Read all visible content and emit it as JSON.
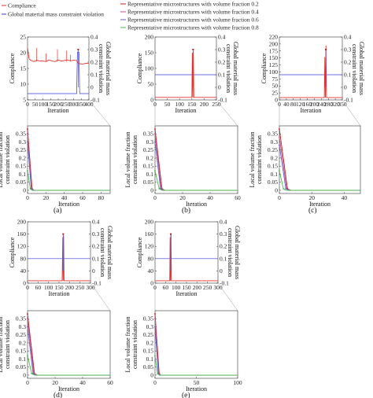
{
  "legend": {
    "compliance": "Compliance",
    "global_violation": "Global material mass constraint violation",
    "vf02": "Representative microstructures with volume fraction 0.2",
    "vf04": "Representative microstructures with volume fraction 0.4",
    "vf06": "Representative microstructures with volume fraction 0.6",
    "vf08": "Representative microstructures with volume fraction 0.8"
  },
  "colors": {
    "compliance": "#e8312a",
    "global": "#3a3ad8",
    "vf02": "#c41e1e",
    "vf04": "#d04a8c",
    "vf06": "#6060c8",
    "vf08": "#44bb44"
  },
  "labels": {
    "compliance": "Compliance",
    "global": "Global material mass constraint violation",
    "iteration": "Iteration",
    "local": "Local volume fraction constraint violation"
  },
  "chart_data": [
    {
      "panel": "(a)",
      "type": "line",
      "main": {
        "x_ticks": [
          "0",
          "50",
          "100",
          "150",
          "200",
          "250",
          "300",
          "350",
          "400"
        ],
        "xlim": [
          0,
          400
        ],
        "y_left_ticks": [
          "5",
          "10",
          "15",
          "20",
          "25"
        ],
        "y_left_lim": [
          2,
          25
        ],
        "y_right_ticks": [
          "-0.1",
          "0",
          "0.1",
          "0.2",
          "0.3",
          "0.4"
        ],
        "y_right_lim": [
          -0.1,
          0.4
        ],
        "compliance": {
          "x": [
            0,
            10,
            20,
            40,
            60,
            80,
            100,
            120,
            140,
            160,
            180,
            200,
            220,
            240,
            260,
            280,
            300,
            320,
            330,
            340,
            360,
            380,
            400
          ],
          "y": [
            21,
            17,
            16.5,
            16,
            16.5,
            16.2,
            16.2,
            16,
            16.6,
            16.2,
            16,
            16.6,
            16.2,
            16.4,
            16.6,
            16.3,
            16.5,
            16.4,
            15.5,
            15.2,
            15.1,
            15.4,
            15.3
          ]
        },
        "compliance_spikes": [
          [
            60,
            21
          ],
          [
            120,
            19
          ],
          [
            195,
            20.5
          ],
          [
            255,
            20
          ],
          [
            280,
            18.5
          ]
        ],
        "global": {
          "x": [
            0,
            20,
            100,
            200,
            300,
            320,
            325,
            335,
            340,
            400
          ],
          "y": [
            -0.05,
            -0.05,
            -0.05,
            -0.05,
            -0.05,
            -0.05,
            0.28,
            0.28,
            -0.05,
            -0.05
          ]
        },
        "local_spike": {
          "x": 330,
          "y": 0.3
        }
      },
      "local": {
        "x_ticks": [
          "0",
          "20",
          "40",
          "60",
          "80"
        ],
        "xlim": [
          0,
          90
        ],
        "y_ticks": [
          "0",
          "0.05",
          "0.1",
          "0.15",
          "0.2",
          "0.25",
          "0.3",
          "0.35"
        ],
        "ylim": [
          -0.02,
          0.4
        ],
        "series": [
          {
            "key": "vf02",
            "x": [
              0,
              5,
              7,
              90
            ],
            "y": [
              0.38,
              0.01,
              0,
              0
            ]
          },
          {
            "key": "vf04",
            "x": [
              0,
              4.5,
              7,
              90
            ],
            "y": [
              0.35,
              0.01,
              0,
              0
            ]
          },
          {
            "key": "vf06",
            "x": [
              0,
              4,
              6,
              90
            ],
            "y": [
              0.3,
              0.01,
              0,
              0
            ]
          },
          {
            "key": "vf08",
            "x": [
              0,
              3,
              5,
              90
            ],
            "y": [
              0.12,
              0.01,
              0,
              0
            ]
          }
        ]
      }
    },
    {
      "panel": "(b)",
      "type": "line",
      "main": {
        "x_ticks": [
          "0",
          "50",
          "100",
          "150",
          "200",
          "250"
        ],
        "xlim": [
          0,
          250
        ],
        "y_left_ticks": [
          "0",
          "50",
          "100",
          "150",
          "200"
        ],
        "y_left_lim": [
          0,
          200
        ],
        "y_right_ticks": [
          "-0.1",
          "0",
          "0.1",
          "0.2",
          "0.3",
          "0.4"
        ],
        "y_right_lim": [
          -0.1,
          0.4
        ],
        "compliance": {
          "x": [
            0,
            150,
            152,
            154,
            156,
            158,
            250
          ],
          "y": [
            8,
            8,
            150,
            8,
            155,
            8,
            8
          ]
        },
        "global": {
          "x": [
            0,
            150,
            250
          ],
          "y": [
            0.1,
            0.1,
            0.1
          ]
        },
        "local_spike": {
          "x": 155,
          "y": 0.3
        }
      },
      "local": {
        "x_ticks": [
          "0",
          "20",
          "40",
          "60"
        ],
        "xlim": [
          0,
          60
        ],
        "y_ticks": [
          "0",
          "0.05",
          "0.1",
          "0.15",
          "0.2",
          "0.25",
          "0.3",
          "0.35"
        ],
        "ylim": [
          -0.02,
          0.4
        ],
        "series": [
          {
            "key": "vf02",
            "x": [
              0,
              5,
              7,
              60
            ],
            "y": [
              0.38,
              0.01,
              0,
              0
            ]
          },
          {
            "key": "vf04",
            "x": [
              0,
              4.5,
              7,
              60
            ],
            "y": [
              0.35,
              0.01,
              0,
              0
            ]
          },
          {
            "key": "vf06",
            "x": [
              0,
              4,
              6,
              60
            ],
            "y": [
              0.3,
              0.01,
              0,
              0
            ]
          },
          {
            "key": "vf08",
            "x": [
              0,
              3,
              5,
              60
            ],
            "y": [
              0.12,
              0.01,
              0,
              0
            ]
          }
        ]
      }
    },
    {
      "panel": "(c)",
      "type": "line",
      "main": {
        "x_ticks": [
          "0",
          "40",
          "80",
          "120",
          "160",
          "200",
          "240",
          "280",
          "320",
          "350"
        ],
        "xlim": [
          0,
          350
        ],
        "y_left_ticks": [
          "0",
          "25",
          "50",
          "75",
          "100",
          "125",
          "150",
          "175",
          "200",
          "220"
        ],
        "y_left_lim": [
          0,
          220
        ],
        "y_right_ticks": [
          "-0.1",
          "0",
          "0.1",
          "0.2",
          "0.3",
          "0.4"
        ],
        "y_right_lim": [
          -0.1,
          0.4
        ],
        "compliance": {
          "x": [
            0,
            250,
            253,
            256,
            259,
            262,
            350
          ],
          "y": [
            8,
            8,
            150,
            8,
            190,
            8,
            8
          ]
        },
        "global": {
          "x": [
            0,
            250,
            350
          ],
          "y": [
            0.1,
            0.1,
            0.1
          ]
        },
        "local_spike": {
          "x": 258,
          "y": 0.3
        }
      },
      "local": {
        "x_ticks": [
          "0",
          "20",
          "40"
        ],
        "xlim": [
          0,
          50
        ],
        "y_ticks": [
          "0",
          "0.05",
          "0.1",
          "0.15",
          "0.2",
          "0.25",
          "0.3",
          "0.35"
        ],
        "ylim": [
          -0.02,
          0.4
        ],
        "series": [
          {
            "key": "vf02",
            "x": [
              0,
              5,
              7,
              50
            ],
            "y": [
              0.38,
              0.01,
              0,
              0
            ]
          },
          {
            "key": "vf04",
            "x": [
              0,
              4.5,
              7,
              50
            ],
            "y": [
              0.33,
              0.01,
              0,
              0
            ]
          },
          {
            "key": "vf06",
            "x": [
              0,
              4,
              6,
              50
            ],
            "y": [
              0.28,
              0.01,
              0,
              0
            ]
          },
          {
            "key": "vf08",
            "x": [
              0,
              2.5,
              4,
              50
            ],
            "y": [
              0.12,
              0.01,
              0,
              0
            ]
          }
        ]
      }
    },
    {
      "panel": "(d)",
      "type": "line",
      "main": {
        "x_ticks": [
          "0",
          "60",
          "100",
          "150",
          "200",
          "250",
          "300"
        ],
        "xlim": [
          0,
          300
        ],
        "y_left_ticks": [
          "0",
          "40",
          "80",
          "120",
          "160",
          "200"
        ],
        "y_left_lim": [
          0,
          200
        ],
        "y_right_ticks": [
          "-0.1",
          "0",
          "0.1",
          "0.2",
          "0.3",
          "0.4"
        ],
        "y_right_lim": [
          -0.1,
          0.4
        ],
        "compliance": {
          "x": [
            0,
            165,
            168,
            170,
            172,
            174,
            300
          ],
          "y": [
            8,
            8,
            150,
            8,
            155,
            8,
            8
          ]
        },
        "global": {
          "x": [
            0,
            165,
            300
          ],
          "y": [
            0.1,
            0.1,
            0.1
          ]
        },
        "local_spike": {
          "x": 170,
          "y": 0.3
        }
      },
      "local": {
        "x_ticks": [
          "0",
          "20",
          "40",
          "60"
        ],
        "xlim": [
          0,
          60
        ],
        "y_ticks": [
          "0",
          "0.05",
          "0.1",
          "0.15",
          "0.2",
          "0.25",
          "0.3",
          "0.35"
        ],
        "ylim": [
          -0.02,
          0.4
        ],
        "series": [
          {
            "key": "vf02",
            "x": [
              0,
              5,
              7,
              60
            ],
            "y": [
              0.38,
              0.01,
              0,
              0
            ]
          },
          {
            "key": "vf04",
            "x": [
              0,
              4.5,
              7,
              60
            ],
            "y": [
              0.35,
              0.01,
              0,
              0
            ]
          },
          {
            "key": "vf06",
            "x": [
              0,
              4,
              6,
              60
            ],
            "y": [
              0.3,
              0.01,
              0,
              0
            ]
          },
          {
            "key": "vf08",
            "x": [
              0,
              3,
              5,
              60
            ],
            "y": [
              0.12,
              0.01,
              0,
              0
            ]
          }
        ]
      }
    },
    {
      "panel": "(e)",
      "type": "line",
      "main": {
        "x_ticks": [
          "0",
          "60",
          "100",
          "150",
          "200",
          "250",
          "300"
        ],
        "xlim": [
          0,
          300
        ],
        "y_left_ticks": [
          "0",
          "40",
          "80",
          "120",
          "160",
          "200"
        ],
        "y_left_lim": [
          0,
          200
        ],
        "y_right_ticks": [
          "-0.1",
          "0",
          "0.1",
          "0.2",
          "0.3",
          "0.4"
        ],
        "y_right_lim": [
          -0.1,
          0.4
        ],
        "compliance": {
          "x": [
            0,
            70,
            72,
            74,
            76,
            78,
            300
          ],
          "y": [
            8,
            8,
            150,
            8,
            160,
            8,
            8
          ]
        },
        "global": {
          "x": [
            0,
            70,
            300
          ],
          "y": [
            0.1,
            0.1,
            0.1
          ]
        },
        "local_spike": {
          "x": 75,
          "y": 0.3
        }
      },
      "local": {
        "x_ticks": [
          "0",
          "50",
          "100"
        ],
        "xlim": [
          0,
          100
        ],
        "y_ticks": [
          "0",
          "0.05",
          "0.1",
          "0.15",
          "0.2",
          "0.25",
          "0.3",
          "0.35"
        ],
        "ylim": [
          -0.02,
          0.4
        ],
        "series": [
          {
            "key": "vf02",
            "x": [
              0,
              5,
              7,
              100
            ],
            "y": [
              0.38,
              0.01,
              0,
              0
            ]
          },
          {
            "key": "vf04",
            "x": [
              0,
              4.5,
              7,
              100
            ],
            "y": [
              0.35,
              0.01,
              0,
              0
            ]
          },
          {
            "key": "vf06",
            "x": [
              0,
              4,
              6,
              100
            ],
            "y": [
              0.3,
              0.01,
              0,
              0
            ]
          },
          {
            "key": "vf08",
            "x": [
              0,
              3,
              5,
              100
            ],
            "y": [
              0.12,
              0.01,
              0,
              0
            ]
          }
        ]
      }
    }
  ]
}
